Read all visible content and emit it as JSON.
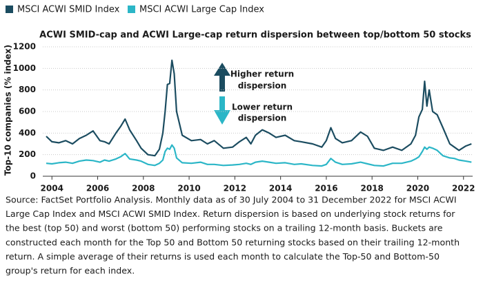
{
  "chart_data": {
    "type": "line",
    "title": "ACWI SMID-cap and ACWI Large-cap return dispersion between top/bottom 50 stocks",
    "y_label": "Top-10 companies (% index)",
    "annotations": [
      [
        "Higher return",
        "dispersion"
      ],
      [
        "Lower return",
        "dispersion"
      ]
    ],
    "source": [
      "Source: FactSet Portfolio Analysis. Monthly data as of 30 July 2004 to 31 December 2022 for MSCI ACWI",
      "Large Cap Index and MSCI ACWI SMID Index. Return dispersion is based on underlying stock returns for",
      "the best (top 50) and worst (bottom 50) performing stocks on a trailing 12-month basis. Buckets are",
      " constructed each month for the Top 50 and Bottom 50 returning stocks based on their trailing 12-month",
      "return. A simple average of their returns is used each month to calculate the Top-50 and Bottom-50",
      "group's return for each index."
    ],
    "x": [
      2003.75,
      2004.0,
      2004.3,
      2004.6,
      2004.9,
      2005.2,
      2005.5,
      2005.8,
      2006.1,
      2006.3,
      2006.5,
      2006.8,
      2007.0,
      2007.2,
      2007.4,
      2007.7,
      2007.9,
      2008.2,
      2008.5,
      2008.7,
      2008.85,
      2008.95,
      2009.05,
      2009.15,
      2009.25,
      2009.35,
      2009.45,
      2009.7,
      2010.1,
      2010.5,
      2010.8,
      2011.1,
      2011.5,
      2011.9,
      2012.2,
      2012.5,
      2012.7,
      2012.9,
      2013.2,
      2013.5,
      2013.8,
      2014.2,
      2014.6,
      2014.9,
      2015.4,
      2015.8,
      2016.0,
      2016.2,
      2016.4,
      2016.7,
      2017.1,
      2017.5,
      2017.8,
      2018.1,
      2018.5,
      2018.9,
      2019.3,
      2019.7,
      2019.9,
      2020.05,
      2020.2,
      2020.3,
      2020.4,
      2020.5,
      2020.65,
      2020.85,
      2021.1,
      2021.4,
      2021.6,
      2021.8,
      2022.1,
      2022.35
    ],
    "series": [
      {
        "name": "MSCI ACWI SMID Index",
        "color": "#1b4c60",
        "values": [
          370,
          320,
          310,
          330,
          300,
          350,
          380,
          420,
          330,
          320,
          300,
          400,
          460,
          530,
          430,
          330,
          260,
          200,
          190,
          250,
          400,
          600,
          850,
          860,
          1075,
          950,
          600,
          380,
          330,
          340,
          300,
          330,
          260,
          270,
          320,
          360,
          300,
          380,
          430,
          400,
          360,
          380,
          330,
          320,
          300,
          270,
          330,
          450,
          350,
          310,
          330,
          410,
          370,
          260,
          240,
          270,
          240,
          300,
          380,
          550,
          620,
          880,
          650,
          800,
          600,
          570,
          450,
          300,
          270,
          240,
          280,
          300
        ]
      },
      {
        "name": "MSCI ACWI Large Cap Index",
        "color": "#2bb6c7",
        "values": [
          120,
          115,
          125,
          130,
          120,
          140,
          150,
          145,
          130,
          150,
          140,
          160,
          180,
          210,
          160,
          150,
          140,
          110,
          100,
          120,
          150,
          230,
          260,
          250,
          290,
          260,
          170,
          125,
          120,
          130,
          110,
          110,
          100,
          105,
          110,
          120,
          110,
          130,
          140,
          130,
          120,
          125,
          110,
          115,
          100,
          95,
          110,
          165,
          130,
          110,
          115,
          130,
          115,
          100,
          95,
          120,
          120,
          140,
          160,
          180,
          230,
          270,
          250,
          270,
          260,
          240,
          190,
          170,
          165,
          150,
          140,
          130
        ]
      }
    ],
    "xlim": [
      2003.6,
      2022.4
    ],
    "xticks": [
      2004,
      2006,
      2008,
      2010,
      2012,
      2014,
      2016,
      2018,
      2020,
      2022
    ],
    "ylim": [
      0,
      1200
    ],
    "yticks": [
      0,
      200,
      400,
      600,
      800,
      1000,
      1200
    ],
    "grid": true
  }
}
